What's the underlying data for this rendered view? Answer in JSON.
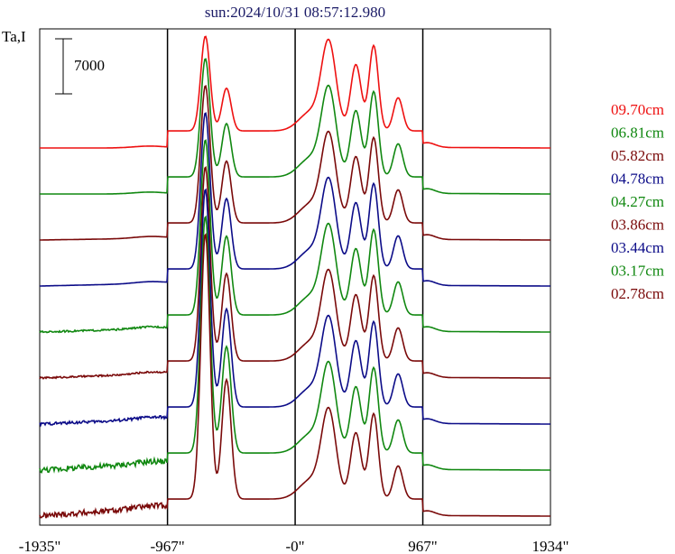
{
  "chart_data": {
    "type": "line",
    "title": "sun:2024/10/31 08:57:12.980",
    "ylabel": "Ta,I",
    "scale_bar_label": "7000",
    "x_ticks": [
      "-1935\"",
      "-967\"",
      "-0\"",
      "967\"",
      "1934\""
    ],
    "x_tick_values": [
      -1935,
      -967,
      0,
      967,
      1934
    ],
    "xlim": [
      -1935,
      1934
    ],
    "limb_lines_x": [
      -967,
      0,
      967
    ],
    "legend_position": "right",
    "series": [
      {
        "name": "09.70cm",
        "color": "#ee1111",
        "baseline_level": 8,
        "peak": 1.0,
        "left_scale": 0.0,
        "noise": 0.0
      },
      {
        "name": "06.81cm",
        "color": "#118811",
        "baseline_level": 7,
        "peak": 1.25,
        "left_scale": 0.0,
        "noise": 0.0
      },
      {
        "name": "05.82cm",
        "color": "#7a0a0a",
        "baseline_level": 6,
        "peak": 1.45,
        "left_scale": 0.02,
        "noise": 0.0
      },
      {
        "name": "04.78cm",
        "color": "#0c0c88",
        "baseline_level": 5,
        "peak": 1.65,
        "left_scale": 0.03,
        "noise": 0.0
      },
      {
        "name": "04.27cm",
        "color": "#118811",
        "baseline_level": 4,
        "peak": 1.85,
        "left_scale": 0.04,
        "noise": 0.3
      },
      {
        "name": "03.86cm",
        "color": "#7a0a0a",
        "baseline_level": 3,
        "peak": 2.05,
        "left_scale": 0.05,
        "noise": 0.3
      },
      {
        "name": "03.44cm",
        "color": "#0c0c88",
        "baseline_level": 2,
        "peak": 2.3,
        "left_scale": 0.06,
        "noise": 0.5
      },
      {
        "name": "03.17cm",
        "color": "#118811",
        "baseline_level": 1,
        "peak": 2.5,
        "left_scale": 0.08,
        "noise": 1.0
      },
      {
        "name": "02.78cm",
        "color": "#7a0a0a",
        "baseline_level": 0,
        "peak": 2.8,
        "left_scale": 0.1,
        "noise": 1.0
      }
    ]
  }
}
